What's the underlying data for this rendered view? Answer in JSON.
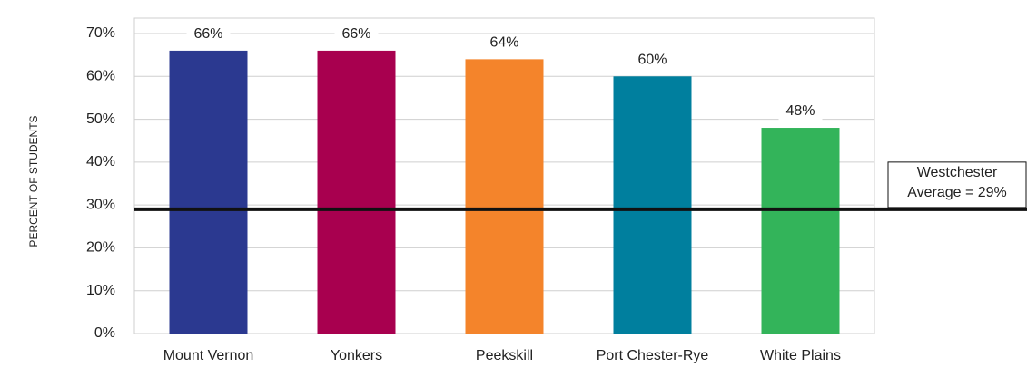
{
  "chart_data": {
    "type": "bar",
    "y_axis_label": "PERCENT OF STUDENTS",
    "categories": [
      "Mount Vernon",
      "Yonkers",
      "Peekskill",
      "Port Chester-Rye",
      "White Plains"
    ],
    "values": [
      66,
      66,
      64,
      60,
      48
    ],
    "value_labels": [
      "66%",
      "66%",
      "64%",
      "60%",
      "48%"
    ],
    "colors": [
      "#2b3990",
      "#a8004f",
      "#f4842b",
      "#007f9e",
      "#33b45a"
    ],
    "ylim": [
      0,
      70
    ],
    "yticks": [
      {
        "value": 0,
        "label": "0%"
      },
      {
        "value": 10,
        "label": "10%"
      },
      {
        "value": 20,
        "label": "20%"
      },
      {
        "value": 30,
        "label": "30%"
      },
      {
        "value": 40,
        "label": "40%"
      },
      {
        "value": 50,
        "label": "50%"
      },
      {
        "value": 60,
        "label": "60%"
      },
      {
        "value": 70,
        "label": "70%"
      }
    ],
    "grid": true,
    "reference_line": {
      "value": 29,
      "label": [
        "Westchester",
        "Average = 29%"
      ]
    }
  }
}
